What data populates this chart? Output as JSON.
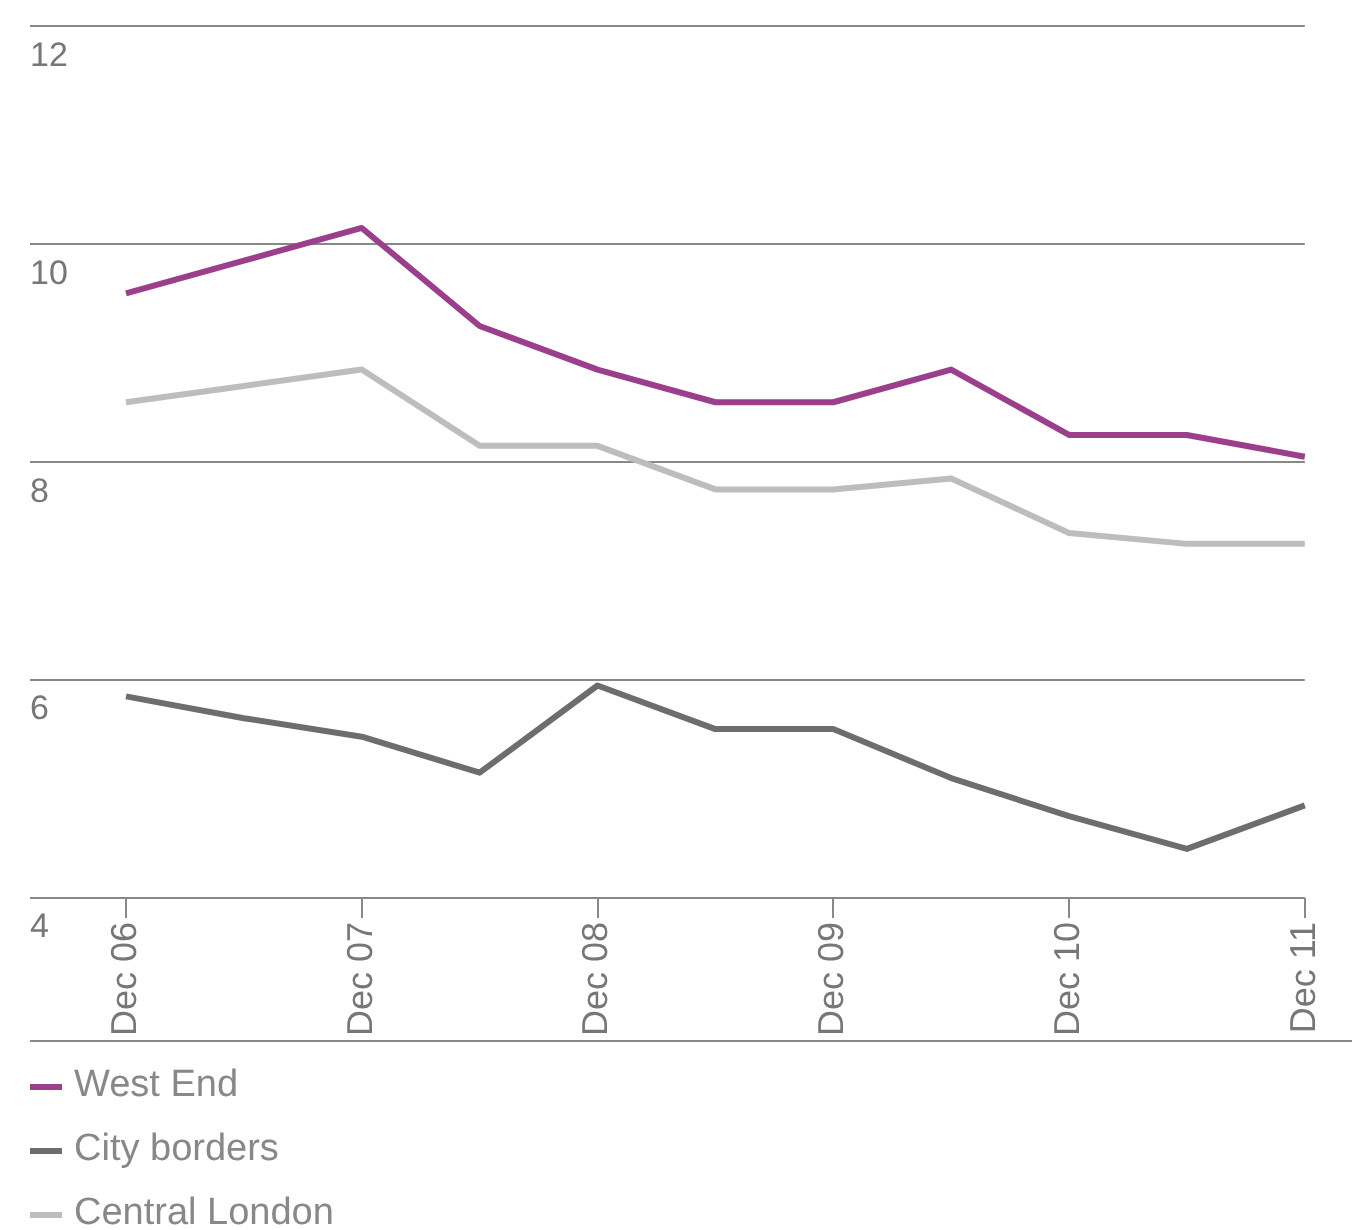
{
  "chart_data": {
    "type": "line",
    "categories": [
      "Dec 06",
      null,
      "Dec 07",
      null,
      "Dec 08",
      null,
      "Dec 09",
      null,
      "Dec 10",
      null,
      "Dec 11"
    ],
    "series": [
      {
        "name": "West End",
        "color": "#9b3f8c",
        "values": [
          9.55,
          9.85,
          10.15,
          9.25,
          8.85,
          8.55,
          8.55,
          8.85,
          8.25,
          8.25,
          8.05
        ]
      },
      {
        "name": "City borders",
        "color": "#6d6d6d",
        "values": [
          5.85,
          5.65,
          5.48,
          5.15,
          5.95,
          5.55,
          5.55,
          5.1,
          4.75,
          4.45,
          4.85
        ]
      },
      {
        "name": "Central London",
        "color": "#bdbdbd",
        "values": [
          8.55,
          8.7,
          8.85,
          8.15,
          8.15,
          7.75,
          7.75,
          7.85,
          7.35,
          7.25,
          7.25
        ]
      }
    ],
    "ylim": [
      4,
      12
    ],
    "yticks": [
      4,
      6,
      8,
      10,
      12
    ],
    "grid": "y",
    "legend": "bottom left",
    "marker": "none",
    "line_style": "solid"
  }
}
